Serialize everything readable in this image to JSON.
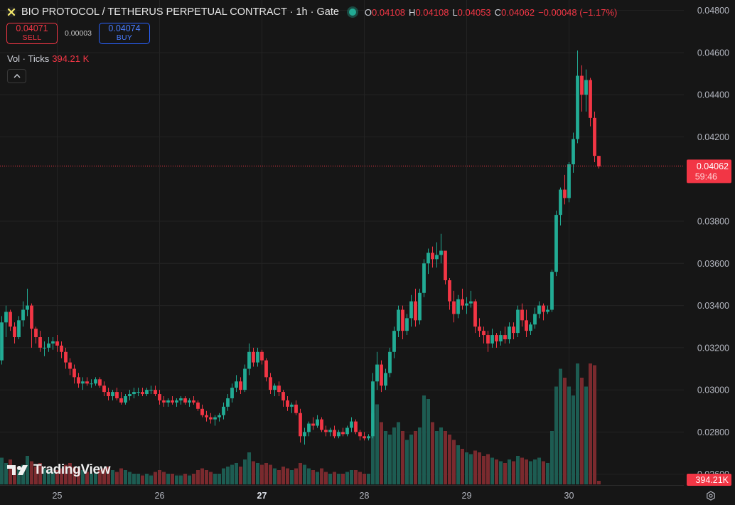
{
  "header": {
    "symbol_icon": "bio-protocol-icon",
    "title": "BIO PROTOCOL / TETHERUS PERPETUAL CONTRACT · 1h · Gate",
    "status": "market-open-dot",
    "open_label": "O",
    "open_value": "0.04108",
    "high_label": "H",
    "high_value": "0.04108",
    "low_label": "L",
    "low_value": "0.04053",
    "close_label": "C",
    "close_value": "0.04062",
    "change_value": "−0.00048 (−1.17%)"
  },
  "trade": {
    "sell_price": "0.04071",
    "sell_label": "SELL",
    "spread": "0.00003",
    "buy_price": "0.04074",
    "buy_label": "BUY"
  },
  "volume_legend": {
    "label": "Vol · Ticks",
    "value": "394.21 K"
  },
  "collapse_icon": "chevron-up-icon",
  "logo": {
    "icon": "tradingview-logo-icon",
    "text": "TradingView"
  },
  "settings_icon": "gear-icon",
  "price_tag": {
    "value": "0.04062",
    "countdown": "59:46"
  },
  "volume_tag": {
    "value": "394.21K"
  },
  "colors": {
    "up": "#22ab94",
    "down": "#f23645",
    "up_vol": "#1d5c52",
    "down_vol": "#7a2a2e",
    "background": "#161616",
    "grid": "#232323"
  },
  "chart_data": {
    "type": "candlestick",
    "interval": "1h",
    "x_tick_labels": [
      "25",
      "26",
      "27",
      "28",
      "29",
      "30"
    ],
    "x_tick_index": [
      13,
      37,
      61,
      85,
      109,
      133
    ],
    "y_tick_labels": [
      "0.04800",
      "0.04600",
      "0.04400",
      "0.04200",
      "0.03800",
      "0.03600",
      "0.03400",
      "0.03200",
      "0.03000",
      "0.02800",
      "0.02600"
    ],
    "ylim": [
      0.02586,
      0.04809
    ],
    "last_price": 0.04062,
    "candles": [
      [
        0.0314,
        0.0335,
        0.0312,
        0.0332,
        15
      ],
      [
        0.0332,
        0.034,
        0.0325,
        0.0337,
        12
      ],
      [
        0.0337,
        0.0338,
        0.0328,
        0.033,
        14
      ],
      [
        0.033,
        0.0332,
        0.0322,
        0.0325,
        10
      ],
      [
        0.0325,
        0.0335,
        0.0324,
        0.0333,
        9
      ],
      [
        0.0333,
        0.0342,
        0.033,
        0.0338,
        11
      ],
      [
        0.0338,
        0.0348,
        0.0335,
        0.034,
        16
      ],
      [
        0.034,
        0.0341,
        0.032,
        0.0329,
        13
      ],
      [
        0.0329,
        0.033,
        0.0322,
        0.0325,
        10
      ],
      [
        0.0325,
        0.0328,
        0.0318,
        0.032,
        12
      ],
      [
        0.032,
        0.0323,
        0.0316,
        0.032,
        9
      ],
      [
        0.032,
        0.0325,
        0.0318,
        0.0322,
        8
      ],
      [
        0.0322,
        0.0325,
        0.0319,
        0.0323,
        7
      ],
      [
        0.0323,
        0.0326,
        0.0318,
        0.0321,
        8
      ],
      [
        0.0321,
        0.0323,
        0.0315,
        0.0318,
        9
      ],
      [
        0.0318,
        0.032,
        0.031,
        0.0313,
        11
      ],
      [
        0.0313,
        0.0315,
        0.0307,
        0.031,
        12
      ],
      [
        0.031,
        0.0312,
        0.0303,
        0.0306,
        10
      ],
      [
        0.0306,
        0.0308,
        0.0301,
        0.0303,
        9
      ],
      [
        0.0303,
        0.0306,
        0.03,
        0.0304,
        8
      ],
      [
        0.0304,
        0.0306,
        0.0302,
        0.0303,
        7
      ],
      [
        0.0303,
        0.0305,
        0.0301,
        0.0303,
        6
      ],
      [
        0.0303,
        0.0306,
        0.0302,
        0.0305,
        7
      ],
      [
        0.0305,
        0.0306,
        0.0301,
        0.0302,
        8
      ],
      [
        0.0302,
        0.0304,
        0.0297,
        0.0299,
        9
      ],
      [
        0.0299,
        0.0301,
        0.0295,
        0.0297,
        10
      ],
      [
        0.0297,
        0.03,
        0.0295,
        0.0299,
        8
      ],
      [
        0.0299,
        0.0301,
        0.0295,
        0.0296,
        7
      ],
      [
        0.0296,
        0.0299,
        0.0293,
        0.0294,
        9
      ],
      [
        0.0294,
        0.0298,
        0.0293,
        0.0297,
        8
      ],
      [
        0.0297,
        0.03,
        0.0295,
        0.0298,
        7
      ],
      [
        0.0298,
        0.0301,
        0.0296,
        0.0299,
        6
      ],
      [
        0.0299,
        0.0301,
        0.0297,
        0.0299,
        6
      ],
      [
        0.0299,
        0.0301,
        0.0297,
        0.0298,
        5
      ],
      [
        0.0298,
        0.0301,
        0.0297,
        0.03,
        6
      ],
      [
        0.03,
        0.0302,
        0.0298,
        0.03,
        5
      ],
      [
        0.03,
        0.0302,
        0.0297,
        0.0298,
        7
      ],
      [
        0.0298,
        0.03,
        0.0293,
        0.0295,
        8
      ],
      [
        0.0295,
        0.0297,
        0.0292,
        0.0294,
        7
      ],
      [
        0.0294,
        0.0296,
        0.0292,
        0.0295,
        6
      ],
      [
        0.0295,
        0.0297,
        0.0293,
        0.0294,
        6
      ],
      [
        0.0294,
        0.0296,
        0.0292,
        0.0295,
        5
      ],
      [
        0.0295,
        0.0297,
        0.0293,
        0.0296,
        5
      ],
      [
        0.0296,
        0.0297,
        0.0293,
        0.0294,
        6
      ],
      [
        0.0294,
        0.0296,
        0.0292,
        0.0295,
        5
      ],
      [
        0.0295,
        0.0297,
        0.0293,
        0.0294,
        6
      ],
      [
        0.0294,
        0.0295,
        0.029,
        0.0291,
        8
      ],
      [
        0.0291,
        0.0293,
        0.0287,
        0.0288,
        9
      ],
      [
        0.0288,
        0.029,
        0.0285,
        0.0287,
        8
      ],
      [
        0.0287,
        0.0289,
        0.0284,
        0.0286,
        7
      ],
      [
        0.0286,
        0.0288,
        0.0283,
        0.0287,
        6
      ],
      [
        0.0287,
        0.0289,
        0.0285,
        0.0288,
        6
      ],
      [
        0.0288,
        0.0294,
        0.0286,
        0.0292,
        9
      ],
      [
        0.0292,
        0.0298,
        0.029,
        0.0296,
        10
      ],
      [
        0.0296,
        0.0303,
        0.0294,
        0.0301,
        11
      ],
      [
        0.0301,
        0.0307,
        0.0299,
        0.0304,
        12
      ],
      [
        0.0304,
        0.0306,
        0.0298,
        0.03,
        10
      ],
      [
        0.03,
        0.0312,
        0.0299,
        0.031,
        14
      ],
      [
        0.031,
        0.0322,
        0.0307,
        0.0318,
        18
      ],
      [
        0.0318,
        0.032,
        0.0311,
        0.0313,
        13
      ],
      [
        0.0313,
        0.032,
        0.0311,
        0.0318,
        12
      ],
      [
        0.0318,
        0.0319,
        0.0312,
        0.0314,
        11
      ],
      [
        0.0314,
        0.0315,
        0.0304,
        0.0306,
        12
      ],
      [
        0.0306,
        0.0308,
        0.0298,
        0.03,
        11
      ],
      [
        0.03,
        0.0303,
        0.0297,
        0.0302,
        9
      ],
      [
        0.0302,
        0.0304,
        0.0297,
        0.0299,
        8
      ],
      [
        0.0299,
        0.03,
        0.0292,
        0.0295,
        10
      ],
      [
        0.0295,
        0.0297,
        0.029,
        0.0292,
        9
      ],
      [
        0.0292,
        0.0294,
        0.0289,
        0.0293,
        8
      ],
      [
        0.0293,
        0.0295,
        0.0288,
        0.0289,
        9
      ],
      [
        0.0289,
        0.0291,
        0.0275,
        0.0278,
        12
      ],
      [
        0.0278,
        0.0282,
        0.0274,
        0.028,
        11
      ],
      [
        0.028,
        0.0285,
        0.0278,
        0.0284,
        9
      ],
      [
        0.0284,
        0.0287,
        0.0281,
        0.0283,
        8
      ],
      [
        0.0283,
        0.0288,
        0.0282,
        0.0286,
        7
      ],
      [
        0.0286,
        0.0287,
        0.028,
        0.0281,
        9
      ],
      [
        0.0281,
        0.0283,
        0.0278,
        0.028,
        7
      ],
      [
        0.028,
        0.0282,
        0.0278,
        0.0281,
        6
      ],
      [
        0.0281,
        0.0283,
        0.0277,
        0.0278,
        7
      ],
      [
        0.0278,
        0.0281,
        0.0277,
        0.028,
        6
      ],
      [
        0.028,
        0.0282,
        0.0278,
        0.0279,
        6
      ],
      [
        0.0279,
        0.0283,
        0.0278,
        0.0282,
        7
      ],
      [
        0.0282,
        0.0287,
        0.028,
        0.0285,
        8
      ],
      [
        0.0285,
        0.0286,
        0.0279,
        0.028,
        8
      ],
      [
        0.028,
        0.0281,
        0.0276,
        0.0278,
        7
      ],
      [
        0.0278,
        0.028,
        0.0276,
        0.0277,
        6
      ],
      [
        0.0277,
        0.0279,
        0.0276,
        0.0278,
        6
      ],
      [
        0.0278,
        0.0308,
        0.0277,
        0.0304,
        40
      ],
      [
        0.0304,
        0.0318,
        0.03,
        0.0312,
        45
      ],
      [
        0.0312,
        0.0314,
        0.0299,
        0.0302,
        35
      ],
      [
        0.0302,
        0.031,
        0.03,
        0.0308,
        30
      ],
      [
        0.0308,
        0.032,
        0.0306,
        0.0318,
        28
      ],
      [
        0.0318,
        0.033,
        0.0315,
        0.0328,
        32
      ],
      [
        0.0328,
        0.034,
        0.0325,
        0.0338,
        35
      ],
      [
        0.0338,
        0.034,
        0.0324,
        0.0328,
        30
      ],
      [
        0.0328,
        0.0336,
        0.0326,
        0.0334,
        25
      ],
      [
        0.0334,
        0.0345,
        0.033,
        0.0342,
        28
      ],
      [
        0.0342,
        0.0348,
        0.033,
        0.0333,
        30
      ],
      [
        0.0333,
        0.0348,
        0.0331,
        0.0346,
        32
      ],
      [
        0.0346,
        0.0362,
        0.0344,
        0.036,
        50
      ],
      [
        0.036,
        0.0367,
        0.0355,
        0.0365,
        48
      ],
      [
        0.0365,
        0.0368,
        0.0358,
        0.0362,
        35
      ],
      [
        0.0362,
        0.037,
        0.0358,
        0.0364,
        30
      ],
      [
        0.0364,
        0.0374,
        0.036,
        0.0366,
        32
      ],
      [
        0.0366,
        0.0366,
        0.035,
        0.0352,
        30
      ],
      [
        0.0352,
        0.0353,
        0.0338,
        0.0342,
        28
      ],
      [
        0.0342,
        0.0347,
        0.0332,
        0.0336,
        25
      ],
      [
        0.0336,
        0.0345,
        0.0334,
        0.0343,
        22
      ],
      [
        0.0343,
        0.0348,
        0.0338,
        0.034,
        20
      ],
      [
        0.034,
        0.0344,
        0.0336,
        0.0341,
        18
      ],
      [
        0.0341,
        0.0347,
        0.0339,
        0.0342,
        17
      ],
      [
        0.0342,
        0.0343,
        0.0327,
        0.033,
        19
      ],
      [
        0.033,
        0.0334,
        0.0325,
        0.0328,
        18
      ],
      [
        0.0328,
        0.033,
        0.0322,
        0.0326,
        16
      ],
      [
        0.0326,
        0.0328,
        0.0318,
        0.0322,
        17
      ],
      [
        0.0322,
        0.0329,
        0.032,
        0.0326,
        15
      ],
      [
        0.0326,
        0.0327,
        0.032,
        0.0323,
        14
      ],
      [
        0.0323,
        0.0328,
        0.0321,
        0.0326,
        13
      ],
      [
        0.0326,
        0.033,
        0.0322,
        0.0324,
        12
      ],
      [
        0.0324,
        0.0332,
        0.0322,
        0.033,
        14
      ],
      [
        0.033,
        0.0332,
        0.0324,
        0.0327,
        13
      ],
      [
        0.0327,
        0.034,
        0.0325,
        0.0338,
        16
      ],
      [
        0.0338,
        0.0341,
        0.033,
        0.0333,
        15
      ],
      [
        0.0333,
        0.0338,
        0.0325,
        0.0328,
        14
      ],
      [
        0.0328,
        0.0332,
        0.0326,
        0.0331,
        13
      ],
      [
        0.0331,
        0.0339,
        0.0329,
        0.0336,
        14
      ],
      [
        0.0336,
        0.0342,
        0.0334,
        0.034,
        15
      ],
      [
        0.034,
        0.0341,
        0.0333,
        0.0337,
        13
      ],
      [
        0.0337,
        0.034,
        0.0336,
        0.0338,
        12
      ],
      [
        0.0338,
        0.0357,
        0.0337,
        0.0356,
        30
      ],
      [
        0.0356,
        0.0385,
        0.0354,
        0.0383,
        55
      ],
      [
        0.0383,
        0.0396,
        0.0378,
        0.0395,
        65
      ],
      [
        0.0395,
        0.0402,
        0.0388,
        0.0391,
        60
      ],
      [
        0.0391,
        0.0408,
        0.0389,
        0.0407,
        55
      ],
      [
        0.0407,
        0.0422,
        0.0403,
        0.0419,
        50
      ],
      [
        0.0419,
        0.0461,
        0.0417,
        0.0449,
        68
      ],
      [
        0.0449,
        0.0454,
        0.0432,
        0.044,
        60
      ],
      [
        0.044,
        0.0452,
        0.0432,
        0.0447,
        55
      ],
      [
        0.0447,
        0.0448,
        0.0425,
        0.0429,
        68
      ],
      [
        0.0429,
        0.0432,
        0.0408,
        0.0411,
        67
      ],
      [
        0.0411,
        0.0411,
        0.0405,
        0.0406,
        2
      ]
    ]
  }
}
